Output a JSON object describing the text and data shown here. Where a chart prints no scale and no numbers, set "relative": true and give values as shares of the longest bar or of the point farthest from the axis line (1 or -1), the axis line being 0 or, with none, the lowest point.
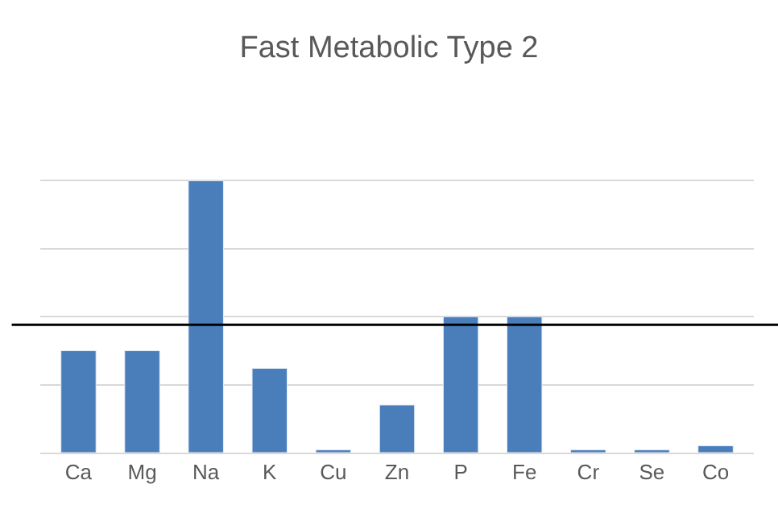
{
  "chart_data": {
    "type": "bar",
    "title": "Fast Metabolic Type 2",
    "relative": true,
    "categories": [
      "Ca",
      "Mg",
      "Na",
      "K",
      "Cu",
      "Zn",
      "P",
      "Fe",
      "Cr",
      "Se",
      "Co"
    ],
    "values": [
      0.375,
      0.375,
      1,
      0.31,
      0.01,
      0.175,
      0.5,
      0.5,
      0.01,
      0.01,
      0.025
    ],
    "color": "#4a7ebb",
    "grid": "y",
    "ref_lines": [
      {
        "axis": "y",
        "value": 0.47,
        "color": "#000000",
        "line_style": "solid"
      }
    ]
  }
}
